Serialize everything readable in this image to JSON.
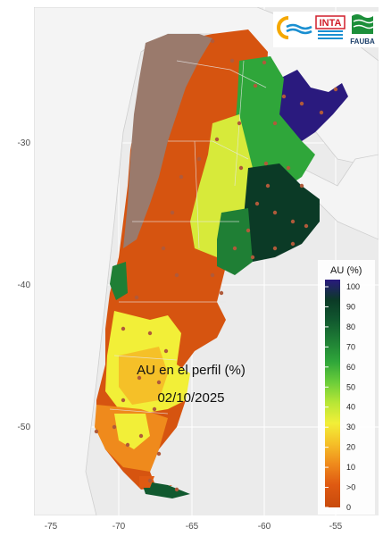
{
  "map": {
    "title": "AU en el perfil (%)",
    "date": "02/10/2025",
    "lon_ticks": [
      "-75",
      "-70",
      "-65",
      "-60",
      "-55"
    ],
    "lat_ticks": [
      "-30",
      "-40",
      "-50"
    ]
  },
  "legend": {
    "title": "AU (%)",
    "labels": [
      "100",
      "90",
      "80",
      "70",
      "60",
      "50",
      "40",
      "30",
      "20",
      "10",
      ">0",
      "0"
    ],
    "colors": [
      "#2a1a7e",
      "#0b3a26",
      "#11592f",
      "#1f7f35",
      "#2fa63a",
      "#6bcd3a",
      "#b7e636",
      "#f2ef38",
      "#f5c028",
      "#ef8a1c",
      "#df5a12",
      "#c84a0c"
    ]
  },
  "logos": {
    "inta": "INTA",
    "fauba": "FAUBA"
  },
  "colors": {
    "no_data": "#9a7a6c",
    "land_outside": "#f4f4f4",
    "water": "#ebebeb",
    "station": "#b05a3a"
  }
}
